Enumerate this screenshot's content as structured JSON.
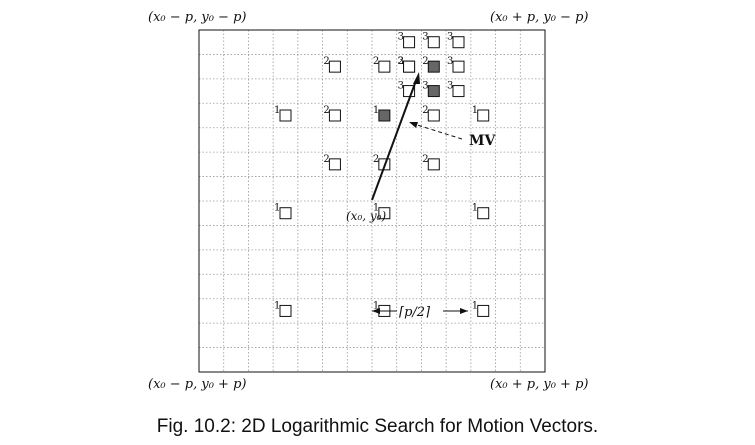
{
  "corners": {
    "top_left": "(x₀ − p, y₀ − p)",
    "top_right": "(x₀ + p, y₀ − p)",
    "bottom_left": "(x₀ − p, y₀ + p)",
    "bottom_right": "(x₀ + p, y₀ + p)"
  },
  "origin_label": "(x₀, y₀)",
  "mv_label": "MV",
  "step_label": "⌈p/2⌉",
  "caption": "Fig. 10.2: 2D Logarithmic Search for Motion Vectors.",
  "grid": {
    "cells": 14
  },
  "points": [
    {
      "step": "1",
      "c": 7,
      "r": 7,
      "filled": false
    },
    {
      "step": "1",
      "c": 3,
      "r": 3,
      "filled": false
    },
    {
      "step": "1",
      "c": 7,
      "r": 3,
      "filled": true
    },
    {
      "step": "1",
      "c": 11,
      "r": 3,
      "filled": false
    },
    {
      "step": "1",
      "c": 3,
      "r": 7,
      "filled": false
    },
    {
      "step": "1",
      "c": 11,
      "r": 7,
      "filled": false
    },
    {
      "step": "1",
      "c": 3,
      "r": 11,
      "filled": false
    },
    {
      "step": "1",
      "c": 7,
      "r": 11,
      "filled": false
    },
    {
      "step": "1",
      "c": 11,
      "r": 11,
      "filled": false
    },
    {
      "step": "2",
      "c": 5,
      "r": 1,
      "filled": false
    },
    {
      "step": "2",
      "c": 7,
      "r": 1,
      "filled": false
    },
    {
      "step": "2",
      "c": 5,
      "r": 3,
      "filled": false
    },
    {
      "step": "2",
      "c": 9,
      "r": 3,
      "filled": false
    },
    {
      "step": "2",
      "c": 5,
      "r": 5,
      "filled": false
    },
    {
      "step": "2",
      "c": 7,
      "r": 5,
      "filled": false
    },
    {
      "step": "2",
      "c": 9,
      "r": 5,
      "filled": false
    },
    {
      "step": "2",
      "c": 8,
      "r": 1,
      "filled": false
    },
    {
      "step": "2",
      "c": 9,
      "r": 1,
      "filled": true
    },
    {
      "step": "3",
      "c": 8,
      "r": 0,
      "filled": false
    },
    {
      "step": "3",
      "c": 9,
      "r": 0,
      "filled": false
    },
    {
      "step": "3",
      "c": 10,
      "r": 0,
      "filled": false
    },
    {
      "step": "3",
      "c": 8,
      "r": 1,
      "filled": false
    },
    {
      "step": "3",
      "c": 10,
      "r": 1,
      "filled": false
    },
    {
      "step": "3",
      "c": 8,
      "r": 2,
      "filled": false
    },
    {
      "step": "3",
      "c": 9,
      "r": 2,
      "filled": true
    },
    {
      "step": "3",
      "c": 10,
      "r": 2,
      "filled": false
    }
  ],
  "colors": {
    "filled": "#666666",
    "line": "#111111",
    "grid": "#9a9a9a"
  }
}
